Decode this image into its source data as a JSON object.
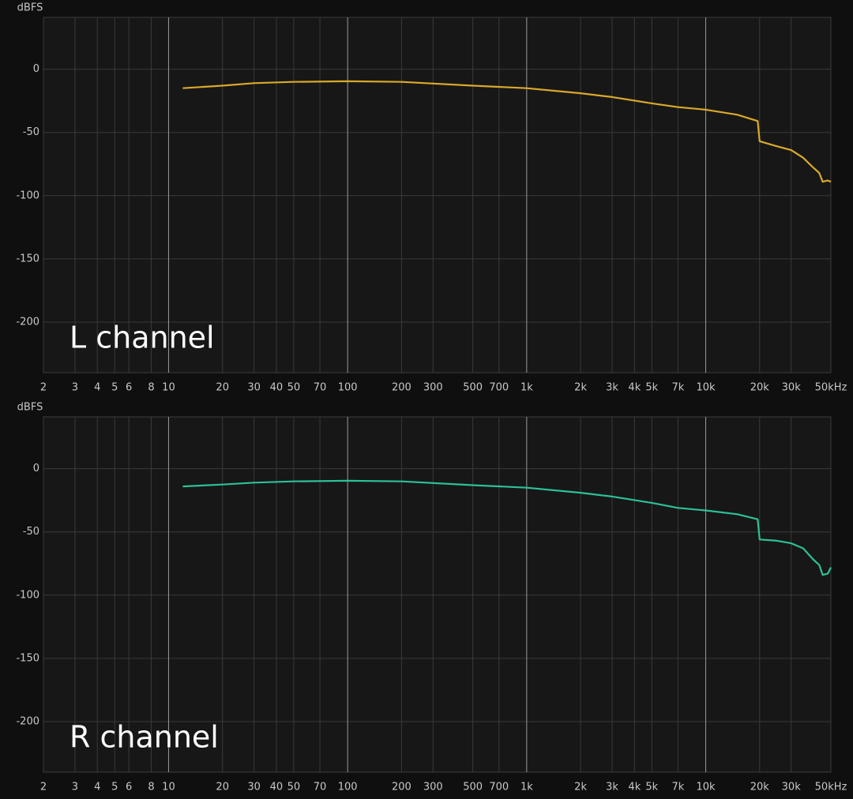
{
  "chart_data": [
    {
      "type": "line",
      "y_label": "dBFS",
      "annotation": "L channel",
      "xscale": "log",
      "grid": true,
      "color": "#d9a92a",
      "xlim": [
        2,
        50000
      ],
      "ylim": [
        -240,
        41
      ],
      "xticks": [
        2,
        3,
        4,
        5,
        6,
        8,
        10,
        20,
        30,
        40,
        50,
        70,
        100,
        200,
        300,
        500,
        700,
        {
          "value": 1000,
          "label": "1k"
        },
        {
          "value": 2000,
          "label": "2k"
        },
        {
          "value": 3000,
          "label": "3k"
        },
        {
          "value": 4000,
          "label": "4k"
        },
        {
          "value": 5000,
          "label": "5k"
        },
        {
          "value": 7000,
          "label": "7k"
        },
        {
          "value": 10000,
          "label": "10k"
        },
        {
          "value": 20000,
          "label": "20k"
        },
        {
          "value": 30000,
          "label": "30k"
        },
        {
          "value": 50000,
          "label": "50kHz"
        }
      ],
      "yticks": [
        0,
        -50,
        -100,
        -150,
        -200
      ],
      "x": [
        12,
        20,
        30,
        50,
        100,
        200,
        500,
        1000,
        2000,
        3000,
        5000,
        7000,
        10000,
        15000,
        19500,
        20000,
        25000,
        30000,
        35000,
        40000,
        43000,
        45000,
        48000,
        50000
      ],
      "values": [
        -15,
        -13,
        -11,
        -10,
        -9.5,
        -10,
        -13,
        -15,
        -19,
        -22,
        -27,
        -30,
        -32,
        -36,
        -41,
        -57,
        -61,
        -64,
        -70,
        -78,
        -82,
        -89,
        -88,
        -89
      ]
    },
    {
      "type": "line",
      "y_label": "dBFS",
      "annotation": "R channel",
      "xscale": "log",
      "grid": true,
      "color": "#2cc196",
      "xlim": [
        2,
        50000
      ],
      "ylim": [
        -240,
        41
      ],
      "xticks": [
        2,
        3,
        4,
        5,
        6,
        8,
        10,
        20,
        30,
        40,
        50,
        70,
        100,
        200,
        300,
        500,
        700,
        {
          "value": 1000,
          "label": "1k"
        },
        {
          "value": 2000,
          "label": "2k"
        },
        {
          "value": 3000,
          "label": "3k"
        },
        {
          "value": 4000,
          "label": "4k"
        },
        {
          "value": 5000,
          "label": "5k"
        },
        {
          "value": 7000,
          "label": "7k"
        },
        {
          "value": 10000,
          "label": "10k"
        },
        {
          "value": 20000,
          "label": "20k"
        },
        {
          "value": 30000,
          "label": "30k"
        },
        {
          "value": 50000,
          "label": "50kHz"
        }
      ],
      "yticks": [
        0,
        -50,
        -100,
        -150,
        -200
      ],
      "x": [
        12,
        20,
        30,
        50,
        100,
        200,
        500,
        1000,
        2000,
        3000,
        5000,
        7000,
        10000,
        15000,
        19500,
        20000,
        25000,
        30000,
        35000,
        40000,
        43000,
        45000,
        48000,
        50000
      ],
      "values": [
        -14,
        -12.5,
        -11,
        -10,
        -9.5,
        -10,
        -13,
        -15,
        -19,
        -22,
        -27,
        -31,
        -33,
        -36,
        -40,
        -56,
        -57,
        -59,
        -63,
        -72,
        -76,
        -84,
        -83,
        -78
      ]
    }
  ]
}
